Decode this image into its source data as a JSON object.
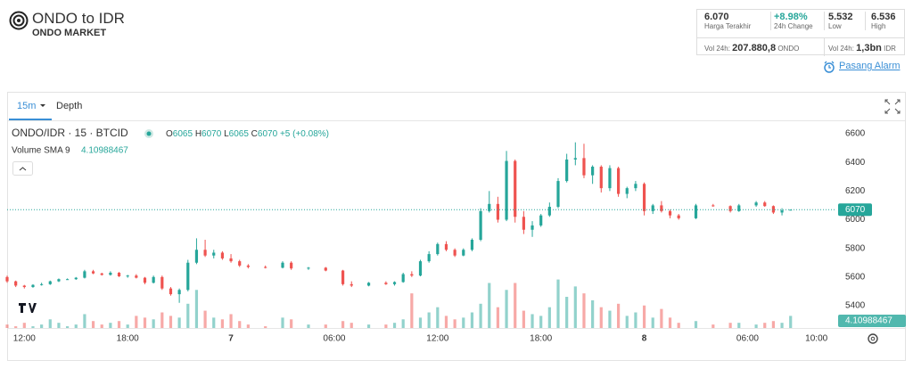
{
  "header": {
    "title": "ONDO to IDR",
    "subtitle": "ONDO MARKET",
    "stats": [
      {
        "value": "6.070",
        "label": "Harga Terakhir"
      },
      {
        "value": "+8.98%",
        "label": "24h Change"
      },
      {
        "value": "5.532",
        "label": "Low"
      },
      {
        "value": "6.536",
        "label": "High"
      }
    ],
    "volumes": [
      {
        "label": "Vol 24h:",
        "value": "207.880,8",
        "unit": "ONDO"
      },
      {
        "label": "Vol 24h:",
        "value": "1,3bn",
        "unit": "IDR"
      }
    ],
    "alarm": "Pasang Alarm"
  },
  "toolbar": {
    "interval": "15m",
    "depth": "Depth"
  },
  "chart_data": {
    "type": "candlestick",
    "symbol": "ONDO/IDR · 15 · BTCID",
    "legend": [
      {
        "label": "O",
        "value": "6065"
      },
      {
        "label": "H",
        "value": "6070"
      },
      {
        "label": "L",
        "value": "6065"
      },
      {
        "label": "C",
        "value": "6070"
      }
    ],
    "change": "+5 (+0.08%)",
    "volume_label": "Volume SMA 9",
    "volume_sma": 4.10988467,
    "last_price": 6070,
    "up_color": "#26a69a",
    "down_color": "#ef5350",
    "x": [
      -1,
      -0.5,
      0,
      0.5,
      1,
      1.5,
      2,
      2.5,
      3,
      3.5,
      4,
      4.5,
      5,
      5.5,
      6,
      6.5,
      7,
      7.5,
      8,
      8.5,
      9,
      9.5,
      10,
      10.5,
      11,
      11.5,
      12,
      12.5,
      13,
      14,
      15,
      15.5,
      16.5,
      17.5,
      18.5,
      19,
      20,
      21,
      21.5,
      22,
      22.5,
      23,
      23.5,
      24,
      24.5,
      25,
      25.5,
      26,
      26.5,
      27,
      27.5,
      28,
      28.5,
      29,
      29.5,
      30,
      30.5,
      31,
      31.5,
      32,
      32.5,
      33,
      33.5,
      34,
      34.5,
      35,
      35.5,
      36,
      36.5,
      37,
      37.5,
      38,
      39,
      40,
      41,
      41.5,
      42.5,
      43,
      43.5,
      44,
      44.5
    ],
    "open": [
      5600,
      5570,
      5540,
      5530,
      5545,
      5550,
      5570,
      5585,
      5585,
      5595,
      5640,
      5625,
      5615,
      5630,
      5605,
      5610,
      5595,
      5560,
      5600,
      5520,
      5480,
      5510,
      5700,
      5790,
      5750,
      5770,
      5730,
      5710,
      5680,
      5670,
      5665,
      5700,
      5660,
      5665,
      5645,
      5550,
      5540,
      5560,
      5550,
      5565,
      5620,
      5610,
      5710,
      5760,
      5830,
      5790,
      5750,
      5790,
      5860,
      6060,
      6110,
      6000,
      6410,
      6020,
      5930,
      5960,
      6030,
      6090,
      6270,
      6420,
      6430,
      6310,
      6370,
      6220,
      6360,
      6180,
      6220,
      6250,
      6060,
      6100,
      6060,
      6030,
      6010,
      6100,
      6095,
      6060,
      6100,
      6120,
      6095,
      6050,
      6065
    ],
    "high": [
      5610,
      5575,
      5545,
      5550,
      5560,
      5575,
      5590,
      5590,
      5600,
      5650,
      5650,
      5630,
      5640,
      5635,
      5615,
      5620,
      5600,
      5610,
      5610,
      5530,
      5520,
      5720,
      5870,
      5860,
      5790,
      5780,
      5760,
      5720,
      5690,
      5680,
      5710,
      5710,
      5670,
      5670,
      5650,
      5570,
      5565,
      5570,
      5570,
      5630,
      5640,
      5720,
      5780,
      5840,
      5850,
      5800,
      5800,
      5870,
      6080,
      6200,
      6160,
      6480,
      6420,
      6060,
      5990,
      6040,
      6120,
      6290,
      6460,
      6540,
      6530,
      6380,
      6380,
      6380,
      6370,
      6230,
      6270,
      6260,
      6110,
      6130,
      6070,
      6040,
      6110,
      6110,
      6100,
      6110,
      6130,
      6130,
      6100,
      6080,
      6070
    ],
    "low": [
      5560,
      5530,
      5520,
      5525,
      5540,
      5545,
      5565,
      5580,
      5580,
      5590,
      5620,
      5610,
      5610,
      5600,
      5595,
      5590,
      5550,
      5555,
      5510,
      5470,
      5420,
      5500,
      5690,
      5740,
      5730,
      5720,
      5700,
      5670,
      5660,
      5660,
      5660,
      5650,
      5650,
      5640,
      5540,
      5530,
      5535,
      5545,
      5540,
      5560,
      5600,
      5605,
      5700,
      5750,
      5780,
      5740,
      5745,
      5780,
      5850,
      6050,
      5980,
      5990,
      5980,
      5900,
      5880,
      5950,
      6020,
      6080,
      6260,
      6380,
      6290,
      6250,
      6190,
      6200,
      6160,
      6150,
      6200,
      6030,
      6040,
      6050,
      6010,
      6000,
      6005,
      6090,
      6050,
      6055,
      6090,
      6090,
      6040,
      6030,
      6065
    ],
    "close": [
      5570,
      5540,
      5530,
      5545,
      5550,
      5570,
      5585,
      5585,
      5595,
      5640,
      5625,
      5615,
      5630,
      5605,
      5610,
      5595,
      5560,
      5600,
      5520,
      5480,
      5510,
      5700,
      5790,
      5750,
      5770,
      5730,
      5710,
      5680,
      5670,
      5665,
      5700,
      5660,
      5665,
      5645,
      5550,
      5540,
      5560,
      5550,
      5565,
      5620,
      5610,
      5710,
      5760,
      5830,
      5790,
      5750,
      5790,
      5860,
      6060,
      6110,
      6000,
      6410,
      6020,
      5930,
      5960,
      6030,
      6090,
      6270,
      6420,
      6430,
      6310,
      6370,
      6220,
      6360,
      6180,
      6220,
      6250,
      6060,
      6100,
      6060,
      6030,
      6010,
      6100,
      6095,
      6060,
      6100,
      6120,
      6095,
      6050,
      6065,
      6070
    ],
    "volume": [
      2,
      1,
      3,
      1,
      2,
      5,
      3,
      1,
      2,
      8,
      4,
      2,
      3,
      4,
      2,
      7,
      6,
      5,
      9,
      7,
      6,
      14,
      22,
      10,
      6,
      5,
      8,
      4,
      2,
      1,
      6,
      5,
      2,
      2,
      4,
      3,
      2,
      2,
      3,
      5,
      20,
      6,
      9,
      12,
      7,
      5,
      6,
      9,
      14,
      26,
      12,
      22,
      26,
      10,
      8,
      7,
      12,
      28,
      18,
      24,
      20,
      16,
      12,
      10,
      14,
      7,
      9,
      13,
      6,
      11,
      6,
      3,
      4,
      2,
      3,
      3,
      2,
      3,
      4,
      3,
      7
    ],
    "xlim": [
      -1,
      47
    ],
    "xticks": [
      {
        "value": 0,
        "label": "12:00"
      },
      {
        "value": 6,
        "label": "18:00"
      },
      {
        "value": 12,
        "label": "7"
      },
      {
        "value": 18,
        "label": "06:00"
      },
      {
        "value": 24,
        "label": "12:00"
      },
      {
        "value": 30,
        "label": "18:00"
      },
      {
        "value": 36,
        "label": "8"
      },
      {
        "value": 42,
        "label": "06:00"
      },
      {
        "value": 46,
        "label": "10:00"
      }
    ],
    "ylim": [
      5340,
      6650
    ],
    "yticks": [
      5400,
      5600,
      5800,
      6000,
      6200,
      6400,
      6600
    ],
    "vlim": [
      0,
      35
    ]
  }
}
